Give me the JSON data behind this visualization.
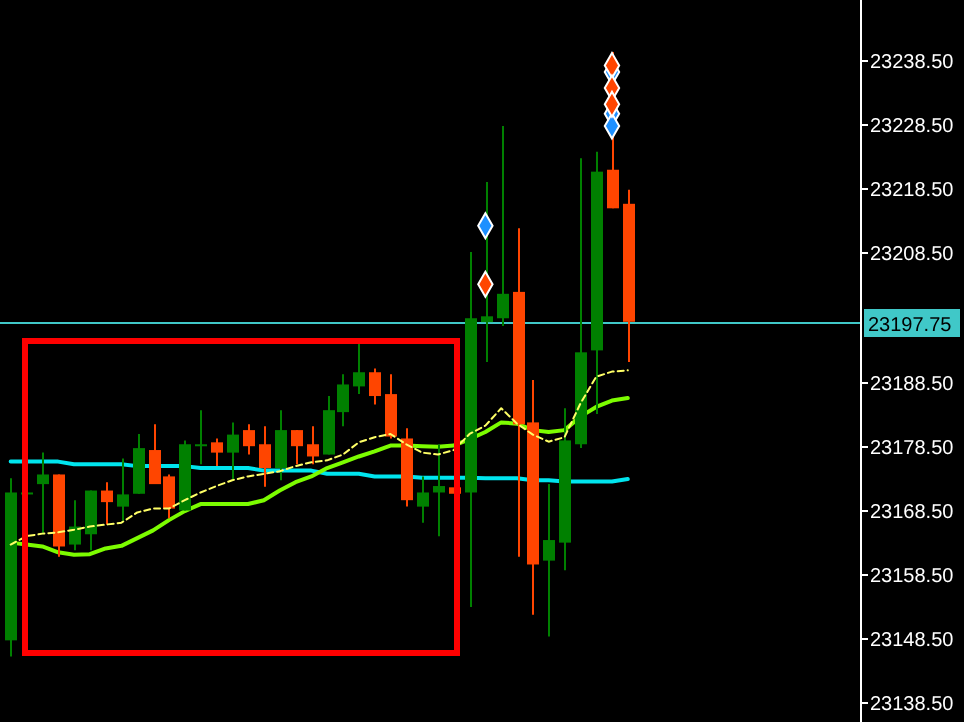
{
  "chart_data": {
    "type": "candlestick",
    "categories": [
      null,
      null,
      null,
      null,
      null,
      null,
      null,
      null,
      null,
      null,
      null,
      null,
      null,
      null,
      null,
      null,
      null,
      null,
      null,
      null,
      null,
      null,
      null,
      null,
      null,
      null,
      null,
      null,
      null,
      null,
      null,
      null,
      null,
      null,
      null,
      null,
      null,
      null,
      null,
      null,
      null,
      null,
      null,
      null,
      null,
      null,
      null,
      null,
      null,
      null,
      null,
      null,
      null,
      null
    ],
    "ohlc": [
      [
        23148.2,
        23173.4,
        23145.7,
        23171.2
      ],
      [
        23170.9,
        23171.5,
        23170.5,
        23171.2
      ],
      [
        23172.5,
        23177.4,
        23164.7,
        23174.0
      ],
      [
        23174.0,
        23174.0,
        23161.2,
        23162.8
      ],
      [
        23163.1,
        23170.0,
        23162.2,
        23165.9
      ],
      [
        23164.7,
        23171.5,
        23162.2,
        23171.5
      ],
      [
        23171.5,
        23172.8,
        23166.2,
        23169.7
      ],
      [
        23169.0,
        23176.5,
        23166.8,
        23170.9
      ],
      [
        23171.0,
        23180.3,
        23171.0,
        23178.1
      ],
      [
        23177.8,
        23181.8,
        23172.5,
        23172.5
      ],
      [
        23173.7,
        23174.0,
        23167.2,
        23168.7
      ],
      [
        23168.4,
        23179.3,
        23168.4,
        23178.7
      ],
      [
        23178.5,
        23184.0,
        23175.6,
        23178.7
      ],
      [
        23179.0,
        23179.6,
        23175.3,
        23177.4
      ],
      [
        23177.4,
        23182.1,
        23173.1,
        23180.2
      ],
      [
        23180.9,
        23181.8,
        23177.1,
        23178.4
      ],
      [
        23178.7,
        23181.5,
        23172.1,
        23175.0
      ],
      [
        23175.0,
        23184.0,
        23173.1,
        23180.9
      ],
      [
        23180.9,
        23180.9,
        23175.6,
        23178.4
      ],
      [
        23178.7,
        23181.5,
        23175.6,
        23176.8
      ],
      [
        23177.1,
        23186.2,
        23177.1,
        23184.0
      ],
      [
        23183.7,
        23189.6,
        23181.5,
        23188.0
      ],
      [
        23187.7,
        23194.3,
        23186.5,
        23189.9
      ],
      [
        23189.9,
        23190.5,
        23184.9,
        23186.2
      ],
      [
        23186.5,
        23189.6,
        23179.6,
        23179.9
      ],
      [
        23179.6,
        23181.2,
        23169.0,
        23170.0
      ],
      [
        23169.0,
        23173.7,
        23166.5,
        23171.2
      ],
      [
        23171.2,
        23178.7,
        23164.4,
        23172.2
      ],
      [
        23172.0,
        23172.2,
        23170.8,
        23171.0
      ],
      [
        23171.2,
        23208.6,
        23153.4,
        23198.3
      ],
      [
        23197.7,
        23219.5,
        23191.5,
        23198.6
      ],
      [
        23198.3,
        23228.2,
        23197.1,
        23202.1
      ],
      [
        23202.4,
        23212.3,
        23161.2,
        23181.8
      ],
      [
        23182.1,
        23188.7,
        23152.2,
        23160.0
      ],
      [
        23160.6,
        23172.5,
        23148.8,
        23163.8
      ],
      [
        23163.4,
        23184.3,
        23159.1,
        23179.3
      ],
      [
        23178.7,
        23223.2,
        23178.1,
        23193.0
      ],
      [
        23193.3,
        23224.2,
        23183.4,
        23221.1
      ],
      [
        23221.4,
        23239.7,
        23215.4,
        23215.4
      ],
      [
        23216.1,
        23218.3,
        23191.5,
        23197.75
      ],
      null,
      null,
      null,
      null,
      null,
      null,
      null,
      null,
      null,
      null,
      null,
      null,
      null,
      null
    ],
    "colors": [
      "#008000",
      "#008000",
      "#008000",
      "#ff4500",
      "#008000",
      "#008000",
      "#ff4500",
      "#008000",
      "#008000",
      "#ff4500",
      "#ff4500",
      "#008000",
      "#008000",
      "#ff4500",
      "#008000",
      "#ff4500",
      "#ff4500",
      "#008000",
      "#ff4500",
      "#ff4500",
      "#008000",
      "#008000",
      "#008000",
      "#ff4500",
      "#ff4500",
      "#ff4500",
      "#008000",
      "#008000",
      "#ff4500",
      "#008000",
      "#008000",
      "#008000",
      "#ff4500",
      "#ff4500",
      "#008000",
      "#008000",
      "#008000",
      "#008000",
      "#ff4500",
      "#ff4500",
      null,
      null,
      null,
      null,
      null,
      null,
      null,
      null,
      null,
      null,
      null,
      null,
      null,
      null
    ],
    "series": [
      {
        "type": "line",
        "color": "#00e5ee",
        "line_style": "solid",
        "values": [
          23176.0,
          23176.0,
          23176.0,
          23176.0,
          23175.6,
          23175.6,
          23175.6,
          23175.6,
          23175.3,
          23175.3,
          23175.3,
          23175.3,
          23175.0,
          23175.0,
          23175.0,
          23175.0,
          23174.6,
          23174.6,
          23174.6,
          23174.6,
          23174.1,
          23174.1,
          23174.1,
          23173.7,
          23173.7,
          23173.7,
          23173.5,
          23173.5,
          23173.5,
          23173.5,
          23173.4,
          23173.4,
          23173.4,
          23173.1,
          23173.1,
          23172.9,
          23172.9,
          23172.9,
          23172.9,
          23173.3,
          null,
          null,
          null,
          null,
          null,
          null,
          null,
          null,
          null,
          null,
          null,
          null,
          null,
          null
        ]
      },
      {
        "type": "line",
        "color": "#7cfc00",
        "line_style": "solid",
        "values": [
          23163.4,
          23163.1,
          23162.8,
          23161.9,
          23161.5,
          23161.6,
          23162.5,
          23162.9,
          23164.1,
          23165.3,
          23166.9,
          23168.3,
          23169.4,
          23169.4,
          23169.4,
          23169.4,
          23170.0,
          23171.5,
          23172.8,
          23173.7,
          23175.0,
          23175.9,
          23176.8,
          23177.6,
          23178.5,
          23178.5,
          23178.4,
          23178.3,
          23178.5,
          23179.5,
          23180.6,
          23182.1,
          23181.9,
          23180.9,
          23180.6,
          23180.9,
          23183.0,
          23184.5,
          23185.5,
          23185.9,
          null,
          null,
          null,
          null,
          null,
          null,
          null,
          null,
          null,
          null,
          null,
          null,
          null,
          null
        ]
      },
      {
        "type": "line",
        "color": "#ffff66",
        "line_style": "dashed",
        "values": [
          23163.1,
          23164.4,
          23164.8,
          23165.0,
          23165.4,
          23165.9,
          23166.2,
          23166.5,
          23168.1,
          23168.7,
          23168.7,
          23170.0,
          23171.2,
          23172.2,
          23173.1,
          23173.7,
          23174.1,
          23174.5,
          23175.3,
          23175.9,
          23176.2,
          23177.1,
          23179.0,
          23179.8,
          23180.3,
          23178.7,
          23177.4,
          23177.1,
          23177.8,
          23180.3,
          23181.6,
          23184.3,
          23181.9,
          23180.2,
          23179.1,
          23179.8,
          23185.0,
          23189.2,
          23190.0,
          23190.2,
          null,
          null,
          null,
          null,
          null,
          null,
          null,
          null,
          null,
          null,
          null,
          null,
          null,
          null
        ]
      },
      {
        "type": "scatter",
        "color": "#1e90ff",
        "marker": "diamond",
        "values": [
          null,
          null,
          null,
          null,
          null,
          null,
          null,
          null,
          null,
          null,
          null,
          null,
          null,
          null,
          null,
          null,
          null,
          null,
          null,
          null,
          null,
          null,
          null,
          null,
          null,
          null,
          null,
          null,
          null,
          null,
          23212.7,
          null,
          null,
          null,
          null,
          null,
          null,
          null,
          23236.6,
          null,
          null,
          null,
          null,
          null,
          null,
          null,
          null,
          null,
          null,
          null,
          null,
          null,
          null,
          null
        ]
      },
      {
        "type": "scatter",
        "color": "#1e90ff",
        "marker": "diamond",
        "values": [
          null,
          null,
          null,
          null,
          null,
          null,
          null,
          null,
          null,
          null,
          null,
          null,
          null,
          null,
          null,
          null,
          null,
          null,
          null,
          null,
          null,
          null,
          null,
          null,
          null,
          null,
          null,
          null,
          null,
          null,
          null,
          null,
          null,
          null,
          null,
          null,
          null,
          null,
          23230.1,
          null,
          null,
          null,
          null,
          null,
          null,
          null,
          null,
          null,
          null,
          null,
          null,
          null,
          null,
          null
        ]
      },
      {
        "type": "scatter",
        "color": "#1e90ff",
        "marker": "diamond",
        "values": [
          null,
          null,
          null,
          null,
          null,
          null,
          null,
          null,
          null,
          null,
          null,
          null,
          null,
          null,
          null,
          null,
          null,
          null,
          null,
          null,
          null,
          null,
          null,
          null,
          null,
          null,
          null,
          null,
          null,
          null,
          null,
          null,
          null,
          null,
          null,
          null,
          null,
          null,
          23228.2,
          null,
          null,
          null,
          null,
          null,
          null,
          null,
          null,
          null,
          null,
          null,
          null,
          null,
          null,
          null
        ]
      },
      {
        "type": "scatter",
        "color": "#ff4500",
        "marker": "diamond",
        "values": [
          null,
          null,
          null,
          null,
          null,
          null,
          null,
          null,
          null,
          null,
          null,
          null,
          null,
          null,
          null,
          null,
          null,
          null,
          null,
          null,
          null,
          null,
          null,
          null,
          null,
          null,
          null,
          null,
          null,
          null,
          23203.6,
          null,
          null,
          null,
          null,
          null,
          null,
          null,
          23237.6,
          null,
          null,
          null,
          null,
          null,
          null,
          null,
          null,
          null,
          null,
          null,
          null,
          null,
          null,
          null
        ]
      },
      {
        "type": "scatter",
        "color": "#ff4500",
        "marker": "diamond",
        "values": [
          null,
          null,
          null,
          null,
          null,
          null,
          null,
          null,
          null,
          null,
          null,
          null,
          null,
          null,
          null,
          null,
          null,
          null,
          null,
          null,
          null,
          null,
          null,
          null,
          null,
          null,
          null,
          null,
          null,
          null,
          null,
          null,
          null,
          null,
          null,
          null,
          null,
          null,
          23234.1,
          null,
          null,
          null,
          null,
          null,
          null,
          null,
          null,
          null,
          null,
          null,
          null,
          null,
          null,
          null
        ]
      },
      {
        "type": "scatter",
        "color": "#ff4500",
        "marker": "diamond",
        "values": [
          null,
          null,
          null,
          null,
          null,
          null,
          null,
          null,
          null,
          null,
          null,
          null,
          null,
          null,
          null,
          null,
          null,
          null,
          null,
          null,
          null,
          null,
          null,
          null,
          null,
          null,
          null,
          null,
          null,
          null,
          null,
          null,
          null,
          null,
          null,
          null,
          null,
          null,
          23231.6,
          null,
          null,
          null,
          null,
          null,
          null,
          null,
          null,
          null,
          null,
          null,
          null,
          null,
          null,
          null
        ]
      }
    ],
    "ylim": [
      23135.5,
      23247.8
    ],
    "yticks": [
      {
        "value": 23138.5,
        "label": "23138.50"
      },
      {
        "value": 23148.5,
        "label": "23148.50"
      },
      {
        "value": 23158.5,
        "label": "23158.50"
      },
      {
        "value": 23168.5,
        "label": "23168.50"
      },
      {
        "value": 23178.5,
        "label": "23178.50"
      },
      {
        "value": 23188.5,
        "label": "23188.50"
      },
      {
        "value": 23208.5,
        "label": "23208.50"
      },
      {
        "value": 23218.5,
        "label": "23218.50"
      },
      {
        "value": 23228.5,
        "label": "23228.50"
      },
      {
        "value": 23238.5,
        "label": "23238.50"
      }
    ],
    "ref_lines": [
      {
        "axis": "y",
        "value": 23197.75,
        "label": "23197.75",
        "color": "#40c8c8"
      }
    ],
    "tick_labels": "y",
    "grid": false
  }
}
